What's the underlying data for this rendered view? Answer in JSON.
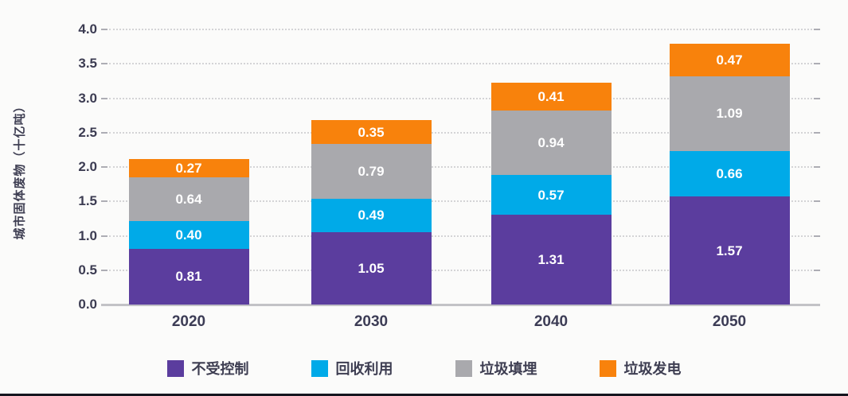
{
  "chart_data": {
    "type": "bar",
    "stacked": true,
    "title": "",
    "xlabel": "",
    "ylabel": "城市固体废物（十亿吨）",
    "categories": [
      "2020",
      "2030",
      "2040",
      "2050"
    ],
    "series": [
      {
        "name": "不受控制",
        "color": "#5B3D9E",
        "values": [
          0.81,
          1.05,
          1.31,
          1.57
        ]
      },
      {
        "name": "回收利用",
        "color": "#00AAE8",
        "values": [
          0.4,
          0.49,
          0.57,
          0.66
        ]
      },
      {
        "name": "垃圾填埋",
        "color": "#A9A9AD",
        "values": [
          0.64,
          0.79,
          0.94,
          1.09
        ]
      },
      {
        "name": "垃圾发电",
        "color": "#F8820C",
        "values": [
          0.27,
          0.35,
          0.41,
          0.47
        ]
      }
    ],
    "value_label_format": "2-decimals",
    "value_label_color": "#FFFFFF",
    "ylim": [
      0,
      4.0
    ],
    "ytick_step": 0.5,
    "yticks": [
      "0.0",
      "0.5",
      "1.0",
      "1.5",
      "2.0",
      "2.5",
      "3.0",
      "3.5",
      "4.0"
    ],
    "grid": true,
    "gridline_style": "dotted",
    "legend_position": "bottom"
  },
  "colors": {
    "background": "#FBFBFA",
    "axis_text": "#3C3C52",
    "baseline": "#C2C2C6",
    "gridline": "#D4D4D6",
    "bottom_border": "#15151F"
  }
}
